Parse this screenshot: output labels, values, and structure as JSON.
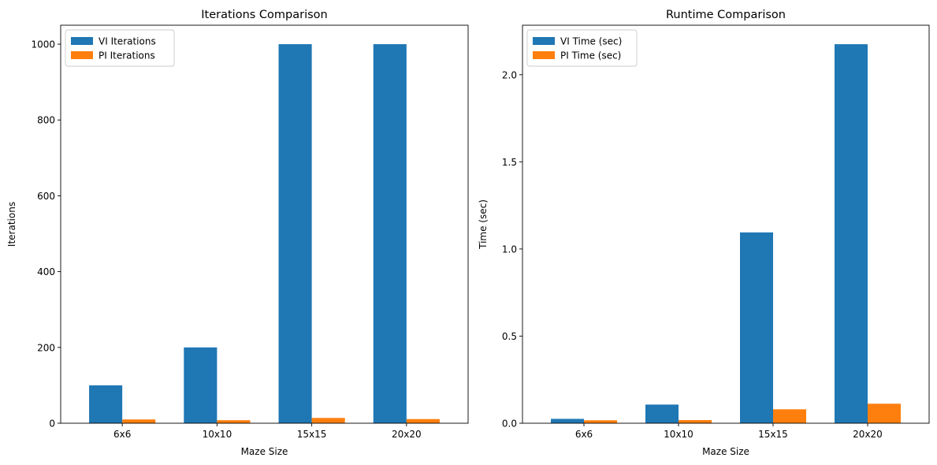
{
  "chart_data": [
    {
      "type": "bar",
      "title": "Iterations Comparison",
      "xlabel": "Maze Size",
      "ylabel": "Iterations",
      "categories": [
        "6x6",
        "10x10",
        "15x15",
        "20x20"
      ],
      "series": [
        {
          "name": "VI Iterations",
          "values": [
            100,
            200,
            1000,
            1000
          ],
          "color": "#1f77b4"
        },
        {
          "name": "PI Iterations",
          "values": [
            10,
            8,
            14,
            11
          ],
          "color": "#ff7f0e"
        }
      ],
      "ylim": [
        0,
        1050
      ],
      "yticks": [
        0,
        200,
        400,
        600,
        800,
        1000
      ],
      "ytick_labels": [
        "0",
        "200",
        "400",
        "600",
        "800",
        "1000"
      ],
      "legend": "top-left",
      "grid": false
    },
    {
      "type": "bar",
      "title": "Runtime Comparison",
      "xlabel": "Maze Size",
      "ylabel": "Time (sec)",
      "categories": [
        "6x6",
        "10x10",
        "15x15",
        "20x20"
      ],
      "series": [
        {
          "name": "VI Time (sec)",
          "values": [
            0.025,
            0.107,
            1.095,
            2.175
          ],
          "color": "#1f77b4"
        },
        {
          "name": "PI Time (sec)",
          "values": [
            0.017,
            0.018,
            0.08,
            0.112
          ],
          "color": "#ff7f0e"
        }
      ],
      "ylim": [
        0,
        2.284
      ],
      "yticks": [
        0,
        0.5,
        1.0,
        1.5,
        2.0
      ],
      "ytick_labels": [
        "0.0",
        "0.5",
        "1.0",
        "1.5",
        "2.0"
      ],
      "legend": "top-left",
      "grid": false
    }
  ]
}
